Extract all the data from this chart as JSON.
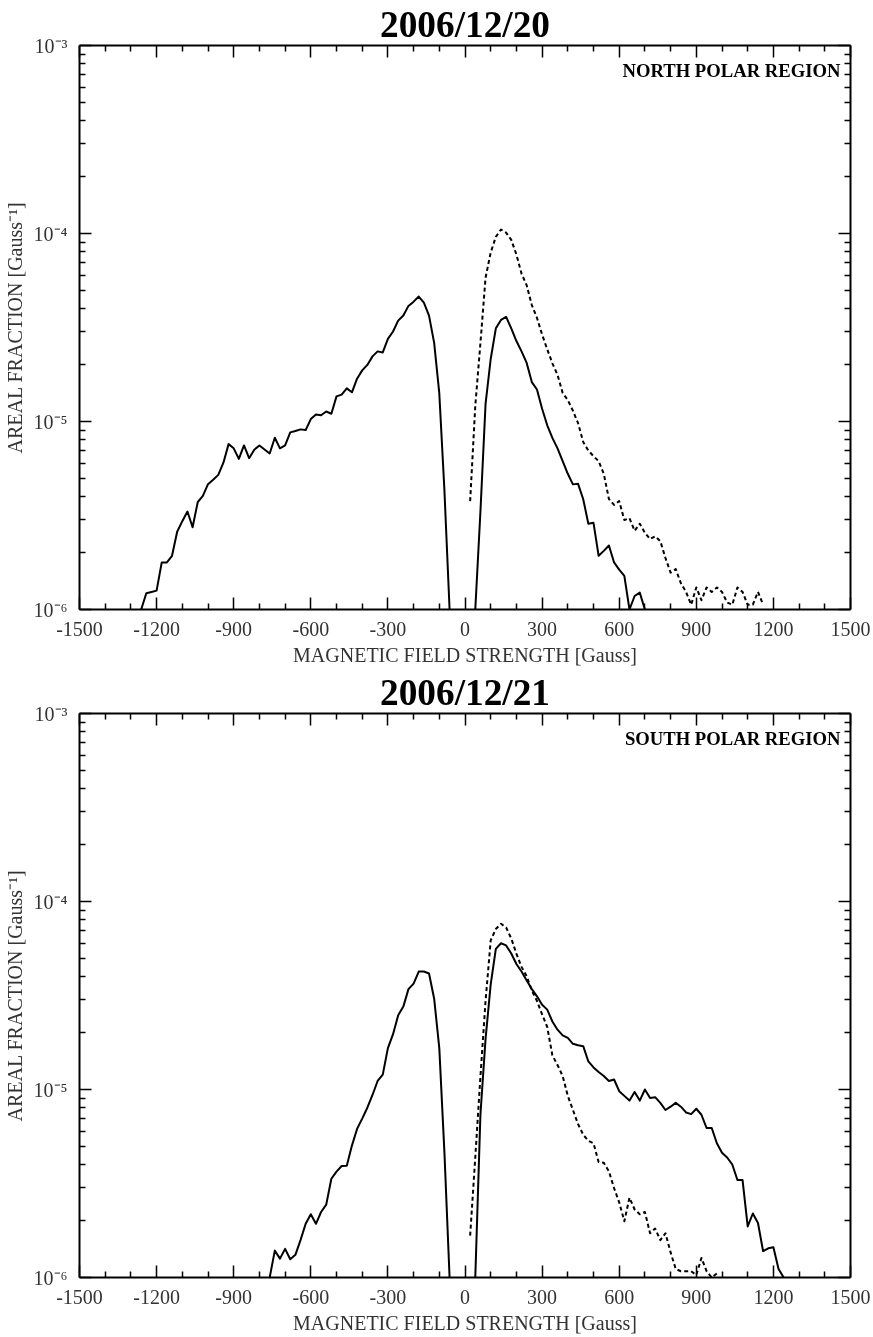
{
  "chart_data": [
    {
      "type": "line",
      "title": "2006/12/20",
      "xlabel": "MAGNETIC FIELD STRENGTH [Gauss]",
      "ylabel": "AREAL FRACTION [Gauss⁻¹]",
      "annotations": [
        "NORTH POLAR REGION"
      ],
      "log": "y",
      "xlim": [
        -1500,
        1500
      ],
      "ylim": [
        1e-06,
        0.001
      ],
      "xticks": [
        -1500,
        -1200,
        -900,
        -600,
        -300,
        0,
        300,
        600,
        900,
        1200,
        1500
      ],
      "yticks": [
        {
          "value": 1e-06,
          "label": "10⁻⁶"
        },
        {
          "value": 1e-05,
          "label": "10⁻⁵"
        },
        {
          "value": 0.0001,
          "label": "10⁻⁴"
        },
        {
          "value": 0.001,
          "label": "10⁻³"
        }
      ],
      "series": [
        {
          "color": "#000000",
          "line_style": "solid",
          "x": [
            -1260,
            -1240,
            -1220,
            -1200,
            -1180,
            -1160,
            -1140,
            -1120,
            -1100,
            -1080,
            -1060,
            -1040,
            -1020,
            -1000,
            -980,
            -960,
            -940,
            -920,
            -900,
            -880,
            -860,
            -840,
            -820,
            -800,
            -780,
            -760,
            -740,
            -720,
            -700,
            -680,
            -660,
            -640,
            -620,
            -600,
            -580,
            -560,
            -540,
            -520,
            -500,
            -480,
            -460,
            -440,
            -420,
            -400,
            -380,
            -360,
            -340,
            -320,
            -300,
            -280,
            -260,
            -240,
            -220,
            -200,
            -180,
            -160,
            -140,
            -120,
            -100,
            -80,
            -60,
            -40,
            -20,
            0,
            20,
            40,
            60,
            80,
            100,
            120,
            140,
            160,
            180,
            200,
            220,
            240,
            260,
            280,
            300,
            320,
            340,
            360,
            380,
            400,
            420,
            440,
            460,
            480,
            500,
            520,
            540,
            560,
            580,
            600,
            620,
            640,
            660,
            680,
            700
          ],
          "values": [
            1e-06,
            1.22e-06,
            1.24e-06,
            1.26e-06,
            1.78e-06,
            1.78e-06,
            1.93e-06,
            2.59e-06,
            2.95e-06,
            3.32e-06,
            2.74e-06,
            3.72e-06,
            4.02e-06,
            4.64e-06,
            4.9e-06,
            5.2e-06,
            6.04e-06,
            7.58e-06,
            7.2e-06,
            6.33e-06,
            7.46e-06,
            6.38e-06,
            7.08e-06,
            7.46e-06,
            7.1e-06,
            6.76e-06,
            8.19e-06,
            7.2e-06,
            7.46e-06,
            8.75e-06,
            8.9e-06,
            9.08e-06,
            9e-06,
            1.03e-05,
            1.09e-05,
            1.08e-05,
            1.13e-05,
            1.1e-05,
            1.36e-05,
            1.39e-05,
            1.5e-05,
            1.43e-05,
            1.69e-05,
            1.87e-05,
            2e-05,
            2.22e-05,
            2.36e-05,
            2.33e-05,
            2.75e-05,
            3.01e-05,
            3.44e-05,
            3.66e-05,
            4.12e-05,
            4.34e-05,
            4.62e-05,
            4.29e-05,
            3.66e-05,
            2.62e-05,
            1.41e-05,
            4.28e-06,
            1e-06,
            null,
            null,
            null,
            null,
            1e-06,
            3.31e-06,
            1.24e-05,
            2.15e-05,
            3.13e-05,
            3.47e-05,
            3.6e-05,
            3.13e-05,
            2.68e-05,
            2.36e-05,
            2.05e-05,
            1.62e-05,
            1.48e-05,
            1.17e-05,
            9.55e-06,
            8.18e-06,
            7.19e-06,
            6.16e-06,
            5.27e-06,
            4.63e-06,
            4.66e-06,
            3.86e-06,
            2.86e-06,
            2.89e-06,
            1.93e-06,
            2.05e-06,
            2.19e-06,
            1.78e-06,
            1.63e-06,
            1.51e-06,
            1e-06,
            1.18e-06,
            1.23e-06,
            1e-06
          ]
        },
        {
          "color": "#000000",
          "line_style": "dashed",
          "x": [
            20,
            40,
            60,
            80,
            100,
            120,
            140,
            160,
            180,
            200,
            220,
            240,
            260,
            280,
            300,
            320,
            340,
            360,
            380,
            400,
            420,
            440,
            460,
            480,
            500,
            520,
            540,
            560,
            580,
            600,
            620,
            640,
            660,
            680,
            700,
            720,
            740,
            760,
            780,
            800,
            820,
            840,
            860,
            880,
            900,
            920,
            940,
            960,
            980,
            1000,
            1020,
            1040,
            1060,
            1080,
            1100,
            1120,
            1140,
            1160
          ],
          "values": [
            3.77e-06,
            1.21e-05,
            2.61e-05,
            5.82e-05,
            7.92e-05,
            9.6e-05,
            0.000105,
            0.000101,
            9.25e-05,
            7.73e-05,
            6.12e-05,
            5.3e-05,
            4.16e-05,
            3.56e-05,
            2.9e-05,
            2.42e-05,
            2.04e-05,
            1.77e-05,
            1.42e-05,
            1.3e-05,
            1.14e-05,
            9.8e-06,
            7.77e-06,
            7e-06,
            6.54e-06,
            6.15e-06,
            5.27e-06,
            3.87e-06,
            3.6e-06,
            3.77e-06,
            2.99e-06,
            3.06e-06,
            2.62e-06,
            2.86e-06,
            2.56e-06,
            2.37e-06,
            2.45e-06,
            2.31e-06,
            1.88e-06,
            1.57e-06,
            1.64e-06,
            1.38e-06,
            1.24e-06,
            1.06e-06,
            1.31e-06,
            1.12e-06,
            1.31e-06,
            1.24e-06,
            1.31e-06,
            1.24e-06,
            1.09e-06,
            1.06e-06,
            1.31e-06,
            1.24e-06,
            1.06e-06,
            1.06e-06,
            1.24e-06,
            1.06e-06
          ]
        }
      ]
    },
    {
      "type": "line",
      "title": "2006/12/21",
      "xlabel": "MAGNETIC FIELD STRENGTH [Gauss]",
      "ylabel": "AREAL FRACTION [Gauss⁻¹]",
      "annotations": [
        "SOUTH POLAR REGION"
      ],
      "log": "y",
      "xlim": [
        -1500,
        1500
      ],
      "ylim": [
        1e-06,
        0.001
      ],
      "xticks": [
        -1500,
        -1200,
        -900,
        -600,
        -300,
        0,
        300,
        600,
        900,
        1200,
        1500
      ],
      "yticks": [
        {
          "value": 1e-06,
          "label": "10⁻⁶"
        },
        {
          "value": 1e-05,
          "label": "10⁻⁵"
        },
        {
          "value": 0.0001,
          "label": "10⁻⁴"
        },
        {
          "value": 0.001,
          "label": "10⁻³"
        }
      ],
      "series": [
        {
          "color": "#000000",
          "line_style": "solid",
          "x": [
            -760,
            -740,
            -720,
            -700,
            -680,
            -660,
            -640,
            -620,
            -600,
            -580,
            -560,
            -540,
            -520,
            -500,
            -480,
            -460,
            -440,
            -420,
            -400,
            -380,
            -360,
            -340,
            -320,
            -300,
            -280,
            -260,
            -240,
            -220,
            -200,
            -180,
            -160,
            -140,
            -120,
            -100,
            -80,
            -60,
            -40,
            -20,
            0,
            20,
            40,
            60,
            80,
            100,
            120,
            140,
            160,
            180,
            200,
            220,
            240,
            260,
            280,
            300,
            320,
            340,
            360,
            380,
            400,
            420,
            440,
            460,
            480,
            500,
            520,
            540,
            560,
            580,
            600,
            620,
            640,
            660,
            680,
            700,
            720,
            740,
            760,
            780,
            800,
            820,
            840,
            860,
            880,
            900,
            920,
            940,
            960,
            980,
            1000,
            1020,
            1040,
            1060,
            1080,
            1100,
            1120,
            1140,
            1160,
            1180,
            1200,
            1220,
            1240
          ],
          "values": [
            1e-06,
            1.39e-06,
            1.26e-06,
            1.42e-06,
            1.25e-06,
            1.32e-06,
            1.58e-06,
            1.93e-06,
            2.17e-06,
            1.93e-06,
            2.23e-06,
            2.44e-06,
            3.35e-06,
            3.66e-06,
            3.92e-06,
            3.93e-06,
            5.03e-06,
            6.17e-06,
            7e-06,
            8e-06,
            9.35e-06,
            1.11e-05,
            1.2e-05,
            1.66e-05,
            1.97e-05,
            2.48e-05,
            2.76e-05,
            3.42e-05,
            3.66e-05,
            4.24e-05,
            4.24e-05,
            4.14e-05,
            3.04e-05,
            1.66e-05,
            4.61e-06,
            1e-06,
            null,
            null,
            null,
            null,
            1e-06,
            7.35e-06,
            1.86e-05,
            3.62e-05,
            5.6e-05,
            6e-05,
            5.84e-05,
            5.29e-05,
            4.65e-05,
            4.24e-05,
            3.8e-05,
            3.42e-05,
            3.13e-05,
            2.82e-05,
            2.66e-05,
            2.3e-05,
            2.08e-05,
            1.94e-05,
            1.88e-05,
            1.75e-05,
            1.72e-05,
            1.7e-05,
            1.41e-05,
            1.31e-05,
            1.24e-05,
            1.18e-05,
            1.11e-05,
            1.13e-05,
            9.8e-06,
            9.25e-06,
            8.73e-06,
            9.7e-06,
            8.73e-06,
            1e-05,
            9e-06,
            9.1e-06,
            8.49e-06,
            7.78e-06,
            8.1e-06,
            8.49e-06,
            8.1e-06,
            7.55e-06,
            7.4e-06,
            7.9e-06,
            7.34e-06,
            6.24e-06,
            6.24e-06,
            5.18e-06,
            4.61e-06,
            4.35e-06,
            3.99e-06,
            3.3e-06,
            3.3e-06,
            1.87e-06,
            2.19e-06,
            1.95e-06,
            1.38e-06,
            1.43e-06,
            1.45e-06,
            1.11e-06,
            1e-06
          ]
        },
        {
          "color": "#000000",
          "line_style": "dashed",
          "x": [
            20,
            40,
            60,
            80,
            100,
            120,
            140,
            160,
            180,
            200,
            220,
            240,
            260,
            280,
            300,
            320,
            340,
            360,
            380,
            400,
            420,
            440,
            460,
            480,
            500,
            520,
            540,
            560,
            580,
            600,
            620,
            640,
            660,
            680,
            700,
            720,
            740,
            760,
            780,
            800,
            820,
            840,
            860,
            880,
            900,
            920,
            940,
            960,
            980
          ],
          "values": [
            1.67e-06,
            4.35e-06,
            1.17e-05,
            2.96e-05,
            6.21e-05,
            7.14e-05,
            7.62e-05,
            7.27e-05,
            6.36e-05,
            5.28e-05,
            4.49e-05,
            4e-05,
            3.36e-05,
            2.96e-05,
            2.51e-05,
            2.15e-05,
            1.52e-05,
            1.35e-05,
            1.18e-05,
            9.25e-06,
            7.78e-06,
            6.54e-06,
            5.75e-06,
            5.33e-06,
            5.18e-06,
            4.11e-06,
            4.08e-06,
            3.67e-06,
            2.99e-06,
            2.51e-06,
            1.99e-06,
            2.66e-06,
            2.3e-06,
            2.17e-06,
            2.23e-06,
            1.72e-06,
            1.82e-06,
            1.58e-06,
            1.72e-06,
            1.36e-06,
            1.11e-06,
            1.08e-06,
            1.08e-06,
            1.08e-06,
            1.03e-06,
            1.27e-06,
            1.08e-06,
            1e-06,
            1.05e-06
          ]
        }
      ]
    }
  ]
}
